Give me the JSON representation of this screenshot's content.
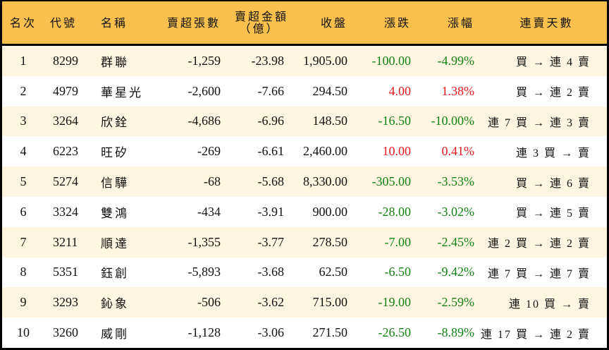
{
  "colors": {
    "header_bg": "#F9C04E",
    "row_alt_bg": "#FFF5E1",
    "row_bg": "#FFFFFF",
    "up": "#E8181C",
    "down": "#128212",
    "border": "#000000"
  },
  "table": {
    "headers": {
      "rank": "名次",
      "code": "代號",
      "name": "名稱",
      "net_sell_lots": "賣超張數",
      "net_sell_amount_line1": "賣超金額",
      "net_sell_amount_line2": "（億）",
      "close": "收盤",
      "change": "漲跌",
      "change_pct": "漲幅",
      "streak": "連賣天數"
    },
    "rows": [
      {
        "rank": "1",
        "code": "8299",
        "name": "群聯",
        "net_sell_lots": "-1,259",
        "net_sell_amount": "-23.98",
        "close": "1,905.00",
        "change": "-100.00",
        "change_pct": "-4.99%",
        "direction": "down",
        "streak": "買 → 連 4 賣"
      },
      {
        "rank": "2",
        "code": "4979",
        "name": "華星光",
        "net_sell_lots": "-2,600",
        "net_sell_amount": "-7.66",
        "close": "294.50",
        "change": "4.00",
        "change_pct": "1.38%",
        "direction": "up",
        "streak": "買 → 連 2 賣"
      },
      {
        "rank": "3",
        "code": "3264",
        "name": "欣銓",
        "net_sell_lots": "-4,686",
        "net_sell_amount": "-6.96",
        "close": "148.50",
        "change": "-16.50",
        "change_pct": "-10.00%",
        "direction": "down",
        "streak": "連 7 買 → 連 3 賣"
      },
      {
        "rank": "4",
        "code": "6223",
        "name": "旺矽",
        "net_sell_lots": "-269",
        "net_sell_amount": "-6.61",
        "close": "2,460.00",
        "change": "10.00",
        "change_pct": "0.41%",
        "direction": "up",
        "streak": "連 3 買 → 賣"
      },
      {
        "rank": "5",
        "code": "5274",
        "name": "信驊",
        "net_sell_lots": "-68",
        "net_sell_amount": "-5.68",
        "close": "8,330.00",
        "change": "-305.00",
        "change_pct": "-3.53%",
        "direction": "down",
        "streak": "買 → 連 6 賣"
      },
      {
        "rank": "6",
        "code": "3324",
        "name": "雙鴻",
        "net_sell_lots": "-434",
        "net_sell_amount": "-3.91",
        "close": "900.00",
        "change": "-28.00",
        "change_pct": "-3.02%",
        "direction": "down",
        "streak": "買 → 連 5 賣"
      },
      {
        "rank": "7",
        "code": "3211",
        "name": "順達",
        "net_sell_lots": "-1,355",
        "net_sell_amount": "-3.77",
        "close": "278.50",
        "change": "-7.00",
        "change_pct": "-2.45%",
        "direction": "down",
        "streak": "連 2 買 → 連 2 賣"
      },
      {
        "rank": "8",
        "code": "5351",
        "name": "鈺創",
        "net_sell_lots": "-5,893",
        "net_sell_amount": "-3.68",
        "close": "62.50",
        "change": "-6.50",
        "change_pct": "-9.42%",
        "direction": "down",
        "streak": "連 7 買 → 連 7 賣"
      },
      {
        "rank": "9",
        "code": "3293",
        "name": "鈊象",
        "net_sell_lots": "-506",
        "net_sell_amount": "-3.62",
        "close": "715.00",
        "change": "-19.00",
        "change_pct": "-2.59%",
        "direction": "down",
        "streak": "連 10 買 → 賣"
      },
      {
        "rank": "10",
        "code": "3260",
        "name": "威剛",
        "net_sell_lots": "-1,128",
        "net_sell_amount": "-3.06",
        "close": "271.50",
        "change": "-26.50",
        "change_pct": "-8.89%",
        "direction": "down",
        "streak": "連 17 買 → 連 2 賣"
      }
    ]
  }
}
